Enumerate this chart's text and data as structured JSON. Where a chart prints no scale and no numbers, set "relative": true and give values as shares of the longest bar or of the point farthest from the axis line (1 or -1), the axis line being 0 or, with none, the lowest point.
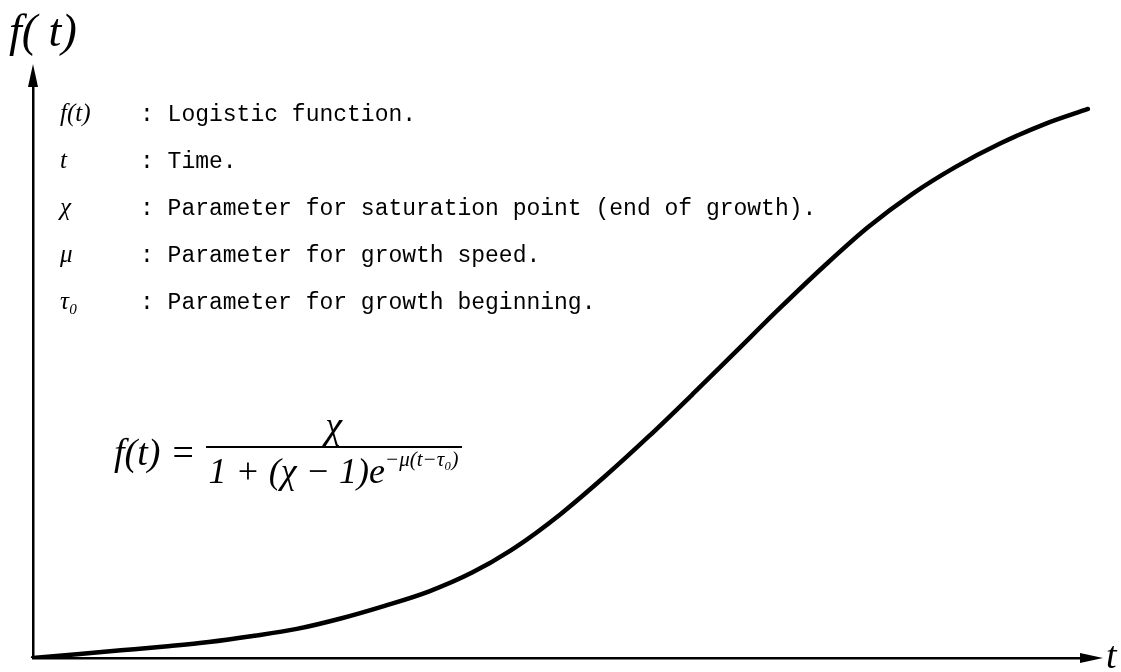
{
  "chart_data": {
    "type": "line",
    "relative": true,
    "xlabel": "t",
    "ylabel": "f( t)",
    "tick_labels": false,
    "categories": [
      null,
      null,
      null,
      null,
      null,
      null,
      null,
      null,
      null,
      null,
      null,
      null,
      null,
      null,
      null,
      null,
      null,
      null,
      null,
      null,
      null,
      null,
      null,
      null,
      null
    ],
    "series": [
      {
        "color": "#000000",
        "values": [
          0,
          0.007,
          0.014,
          0.021,
          0.029,
          0.04,
          0.053,
          0.072,
          0.095,
          0.121,
          0.156,
          0.203,
          0.262,
          0.33,
          0.403,
          0.48,
          0.559,
          0.638,
          0.714,
          0.785,
          0.845,
          0.895,
          0.937,
          0.972,
          1
        ]
      }
    ],
    "annotations": [
      "f(t) : Logistic function.",
      "t : Time.",
      "χ : Parameter for saturation point (end of growth).",
      "μ : Parameter for growth speed.",
      "τ₀ : Parameter for growth beginning.",
      "f(t) =",
      "χ",
      "1 + (χ − 1)e$^{−μ(t−τ₀)}$"
    ]
  }
}
